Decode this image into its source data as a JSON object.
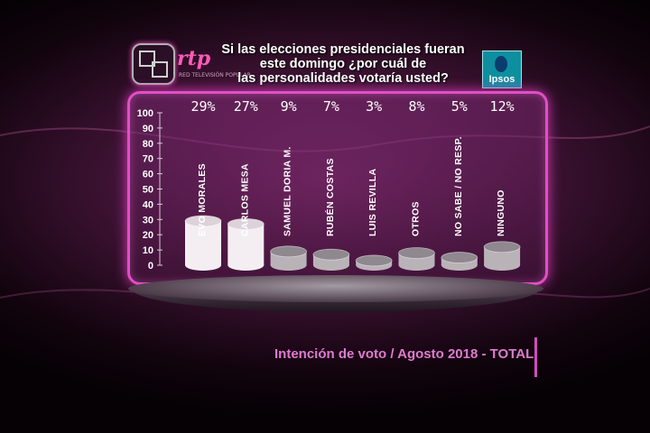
{
  "header": {
    "brand": "rtp",
    "brand_sub": "RED TELEVISIÓN POPULAR",
    "title_lines": [
      "Si las elecciones presidenciales fueran",
      "este domingo ¿por cuál de",
      "las personalidades votaría usted?"
    ],
    "pollster": "Ipsos"
  },
  "chart_data": {
    "type": "bar",
    "categories": [
      "EVO MORALES",
      "CARLOS MESA",
      "SAMUEL DORIA M.",
      "RUBÉN COSTAS",
      "LUIS REVILLA",
      "OTROS",
      "NO SABE / NO RESP.",
      "NINGUNO"
    ],
    "values": [
      29,
      27,
      9,
      7,
      3,
      8,
      5,
      12
    ],
    "value_labels": [
      "29%",
      "27%",
      "9%",
      "7%",
      "3%",
      "8%",
      "5%",
      "12%"
    ],
    "ylim": [
      0,
      100
    ],
    "yticks": [
      "0",
      "10",
      "20",
      "30",
      "40",
      "50",
      "60",
      "70",
      "80",
      "90",
      "100"
    ],
    "colors": {
      "highlight": "#f4eef2",
      "normal": "#b9b3b8",
      "accent": "#e24ec6"
    }
  },
  "footer": {
    "subtitle": "Intención de voto / Agosto 2018 - TOTAL"
  }
}
